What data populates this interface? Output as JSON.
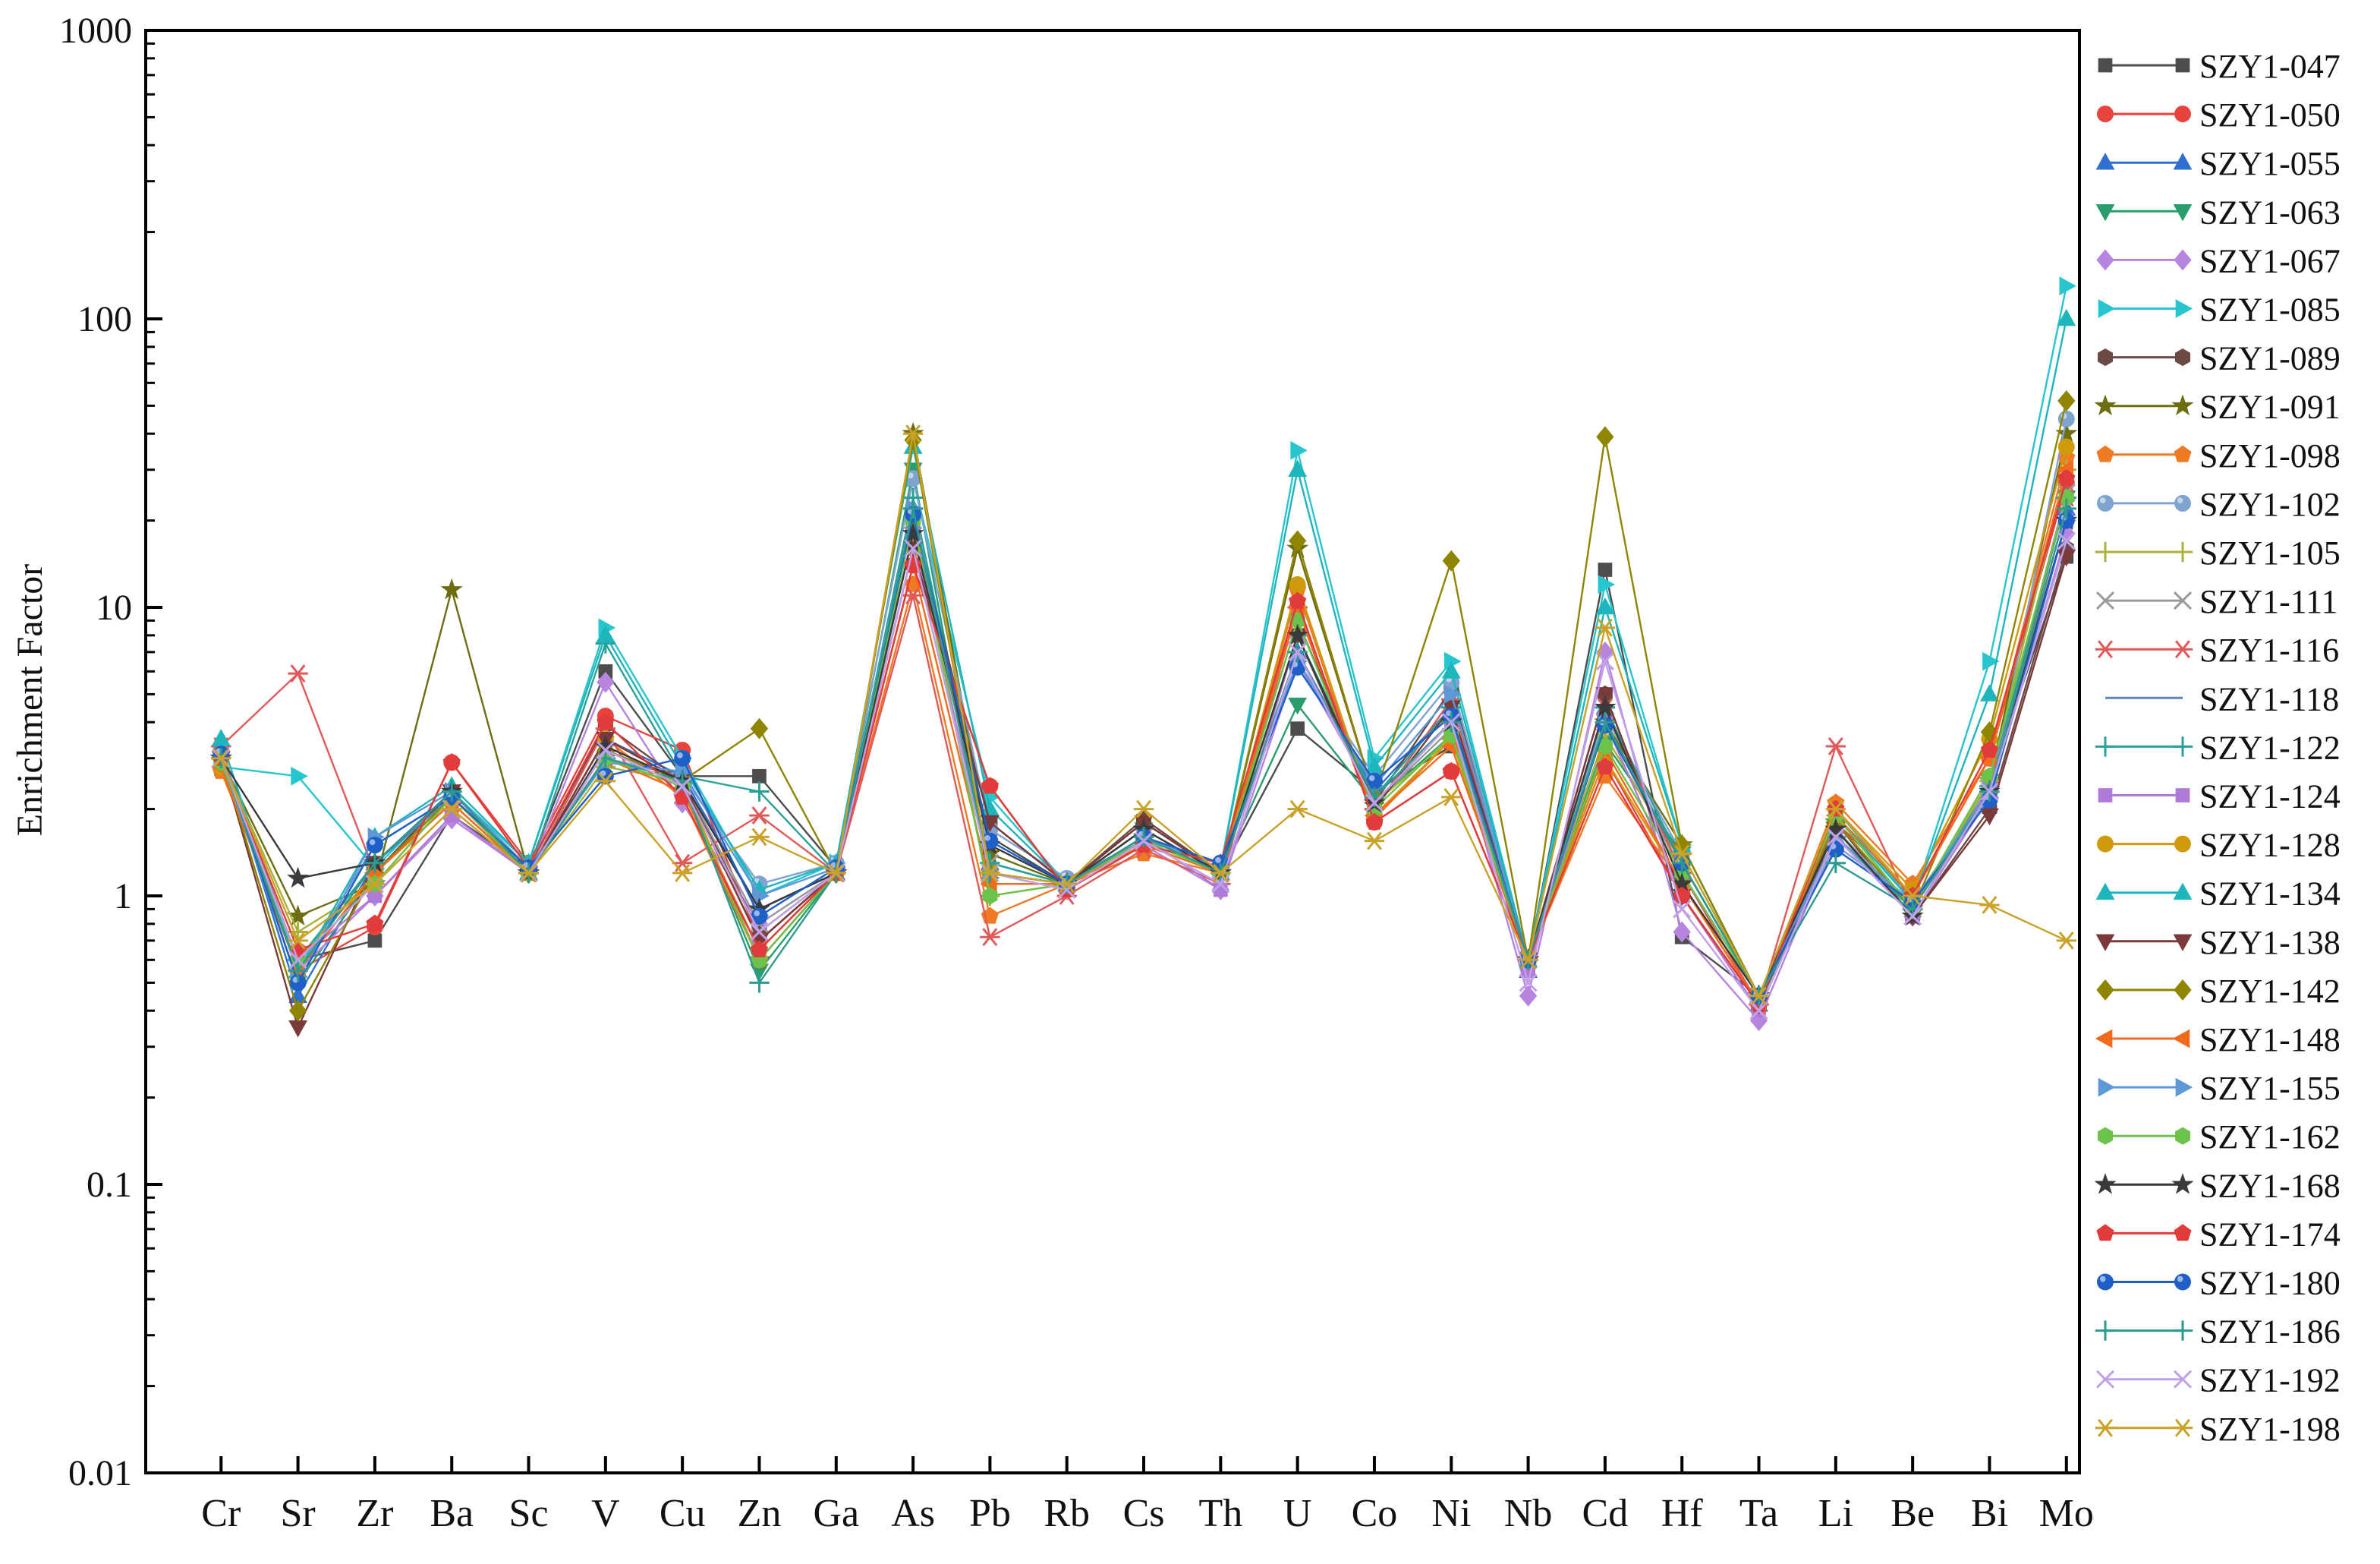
{
  "chart_data": {
    "type": "line",
    "ylabel": "Enrichment Factor",
    "xlabel": "",
    "yscale": "log",
    "ylim": [
      0.01,
      1000
    ],
    "yticks": [
      0.01,
      0.1,
      1,
      10,
      100,
      1000
    ],
    "ytick_labels": [
      "0.01",
      "0.1",
      "1",
      "10",
      "100",
      "1000"
    ],
    "grid": false,
    "legend_position": "right",
    "categories": [
      "Cr",
      "Sr",
      "Zr",
      "Ba",
      "Sc",
      "V",
      "Cu",
      "Zn",
      "Ga",
      "As",
      "Pb",
      "Rb",
      "Cs",
      "Th",
      "U",
      "Co",
      "Ni",
      "Nb",
      "Cd",
      "Hf",
      "Ta",
      "Li",
      "Be",
      "Bi",
      "Mo"
    ],
    "series": [
      {
        "name": "SZY1-047",
        "color": "#4d4d4d",
        "marker": "square",
        "values": [
          3.1,
          0.6,
          0.7,
          1.9,
          1.25,
          6.0,
          2.6,
          2.6,
          1.25,
          18,
          1.6,
          1.1,
          1.8,
          1.2,
          3.8,
          2.3,
          3.3,
          0.6,
          13.5,
          0.72,
          0.45,
          1.7,
          0.9,
          2.5,
          15
        ]
      },
      {
        "name": "SZY1-050",
        "color": "#e8443e",
        "marker": "circle",
        "values": [
          3.0,
          0.55,
          0.78,
          2.9,
          1.3,
          4.2,
          3.2,
          0.7,
          1.2,
          14,
          2.4,
          1.05,
          1.5,
          1.3,
          10,
          1.8,
          2.7,
          0.6,
          3.0,
          1.0,
          0.42,
          1.8,
          1.0,
          3.0,
          27
        ]
      },
      {
        "name": "SZY1-055",
        "color": "#2f6fd0",
        "marker": "triangle-up",
        "values": [
          3.2,
          0.45,
          1.3,
          2.2,
          1.2,
          3.5,
          2.6,
          0.9,
          1.2,
          22,
          1.3,
          1.1,
          1.6,
          1.2,
          7,
          2.3,
          4.5,
          0.55,
          4.5,
          1.2,
          0.42,
          1.6,
          0.95,
          2.3,
          22
        ]
      },
      {
        "name": "SZY1-063",
        "color": "#2a9d6c",
        "marker": "triangle-down",
        "values": [
          3.0,
          0.5,
          1.2,
          2.3,
          1.25,
          3.0,
          2.4,
          0.55,
          1.2,
          30,
          1.1,
          1.1,
          1.7,
          1.2,
          4.6,
          2.1,
          3.6,
          0.6,
          3.4,
          1.4,
          0.45,
          1.9,
          0.9,
          2.5,
          24
        ]
      },
      {
        "name": "SZY1-067",
        "color": "#b784e0",
        "marker": "diamond",
        "values": [
          3.0,
          0.55,
          1.0,
          1.85,
          1.2,
          5.5,
          2.1,
          0.8,
          1.2,
          16,
          1.2,
          1.05,
          1.5,
          1.05,
          6.5,
          2.2,
          4.0,
          0.45,
          7.0,
          0.75,
          0.37,
          1.6,
          0.85,
          2.2,
          18
        ]
      },
      {
        "name": "SZY1-085",
        "color": "#27c6cf",
        "marker": "triangle-right",
        "values": [
          2.8,
          2.6,
          1.25,
          2.3,
          1.3,
          8.5,
          3.0,
          1.0,
          1.3,
          28,
          2.2,
          1.1,
          1.6,
          1.25,
          35,
          3.0,
          6.5,
          0.6,
          12,
          1.5,
          0.45,
          2.0,
          0.95,
          6.5,
          130
        ]
      },
      {
        "name": "SZY1-089",
        "color": "#6b4a46",
        "marker": "hexagon",
        "values": [
          3.1,
          0.55,
          1.2,
          2.3,
          1.25,
          3.9,
          2.5,
          0.75,
          1.2,
          20,
          1.8,
          1.1,
          1.85,
          1.2,
          9,
          2.1,
          5.2,
          0.6,
          5.0,
          1.0,
          0.42,
          1.8,
          0.85,
          2.0,
          16
        ]
      },
      {
        "name": "SZY1-091",
        "color": "#6d6d12",
        "marker": "star",
        "values": [
          3.0,
          0.85,
          1.1,
          11.5,
          1.2,
          3.0,
          2.4,
          0.6,
          1.2,
          40,
          1.4,
          1.1,
          1.6,
          1.2,
          16,
          2.2,
          4.0,
          0.6,
          4.0,
          1.5,
          0.45,
          1.8,
          0.9,
          2.5,
          40
        ]
      },
      {
        "name": "SZY1-098",
        "color": "#f07a23",
        "marker": "pentagon",
        "values": [
          2.7,
          0.6,
          1.2,
          2.1,
          1.2,
          3.5,
          2.2,
          0.6,
          1.2,
          12,
          0.85,
          1.1,
          1.4,
          1.2,
          11.5,
          1.85,
          3.5,
          0.6,
          2.6,
          1.1,
          0.42,
          2.1,
          1.1,
          3.0,
          33
        ]
      },
      {
        "name": "SZY1-102",
        "color": "#7fa3cf",
        "marker": "sphere",
        "values": [
          3.2,
          0.55,
          1.5,
          2.2,
          1.25,
          3.0,
          2.6,
          1.1,
          1.3,
          28,
          1.7,
          1.15,
          1.55,
          1.3,
          6.5,
          2.6,
          5.5,
          0.6,
          4.2,
          1.4,
          0.45,
          1.5,
          0.95,
          2.2,
          45
        ]
      },
      {
        "name": "SZY1-105",
        "color": "#a8b23a",
        "marker": "plus",
        "values": [
          3.0,
          0.75,
          1.1,
          2.2,
          1.2,
          2.8,
          2.5,
          0.7,
          1.2,
          22,
          1.0,
          1.1,
          1.6,
          1.2,
          8,
          2.1,
          3.5,
          0.6,
          3.6,
          1.3,
          0.45,
          1.8,
          0.9,
          2.5,
          30
        ]
      },
      {
        "name": "SZY1-111",
        "color": "#9a9a9a",
        "marker": "x",
        "values": [
          3.0,
          0.6,
          1.2,
          2.2,
          1.2,
          3.2,
          2.5,
          0.8,
          1.2,
          20,
          1.3,
          1.1,
          1.6,
          1.2,
          8,
          2.1,
          3.8,
          0.6,
          4.0,
          1.2,
          0.45,
          1.7,
          0.9,
          2.4,
          25
        ]
      },
      {
        "name": "SZY1-116",
        "color": "#e05a5a",
        "marker": "asterisk",
        "values": [
          3.3,
          5.9,
          1.2,
          2.1,
          1.2,
          3.8,
          1.3,
          1.9,
          1.2,
          11,
          0.72,
          1.0,
          1.45,
          1.1,
          10,
          2.0,
          4.8,
          0.6,
          4.5,
          1.2,
          0.42,
          3.3,
          0.9,
          2.3,
          24
        ]
      },
      {
        "name": "SZY1-118",
        "color": "#5b86b5",
        "marker": "none",
        "values": [
          3.1,
          0.6,
          1.3,
          2.2,
          1.2,
          3.2,
          2.5,
          0.9,
          1.2,
          20,
          1.3,
          1.1,
          1.6,
          1.2,
          7,
          2.2,
          4.0,
          0.6,
          4.0,
          1.3,
          0.45,
          1.6,
          0.9,
          2.4,
          24
        ]
      },
      {
        "name": "SZY1-122",
        "color": "#2aa198",
        "marker": "plus",
        "values": [
          3.0,
          0.6,
          1.3,
          2.3,
          1.2,
          7.5,
          2.6,
          2.3,
          1.2,
          24,
          1.3,
          1.1,
          1.6,
          1.2,
          8,
          2.2,
          4.5,
          0.6,
          4.5,
          1.3,
          0.45,
          1.6,
          0.9,
          2.4,
          24
        ]
      },
      {
        "name": "SZY1-124",
        "color": "#b07ad9",
        "marker": "square",
        "values": [
          3.0,
          0.6,
          1.0,
          1.9,
          1.2,
          3.2,
          2.5,
          0.7,
          1.2,
          18,
          1.2,
          1.1,
          1.6,
          1.05,
          8,
          2.1,
          4.0,
          0.55,
          4.0,
          1.0,
          0.4,
          1.6,
          0.85,
          2.4,
          20
        ]
      },
      {
        "name": "SZY1-128",
        "color": "#d09a0c",
        "marker": "circle",
        "values": [
          2.8,
          0.6,
          1.2,
          2.2,
          1.2,
          3.5,
          2.5,
          0.6,
          1.2,
          16,
          1.2,
          1.1,
          1.55,
          1.2,
          12,
          1.9,
          3.5,
          0.6,
          3.0,
          1.1,
          0.45,
          2.0,
          1.05,
          3.5,
          36
        ]
      },
      {
        "name": "SZY1-134",
        "color": "#1fb5bd",
        "marker": "triangle-up",
        "values": [
          3.5,
          0.55,
          1.6,
          2.4,
          1.3,
          8.0,
          2.8,
          1.05,
          1.3,
          36,
          2.0,
          1.1,
          1.6,
          1.25,
          30,
          2.8,
          6.0,
          0.6,
          10,
          1.5,
          0.45,
          1.9,
          0.95,
          5.0,
          100
        ]
      },
      {
        "name": "SZY1-138",
        "color": "#7a3a3a",
        "marker": "triangle-down",
        "values": [
          3.0,
          0.35,
          1.3,
          2.3,
          1.2,
          3.5,
          2.5,
          0.7,
          1.2,
          16,
          1.8,
          1.1,
          1.8,
          1.2,
          8,
          2.0,
          4.5,
          0.6,
          5.0,
          1.0,
          0.42,
          1.7,
          0.85,
          1.9,
          15
        ]
      },
      {
        "name": "SZY1-142",
        "color": "#8f8500",
        "marker": "diamond",
        "values": [
          3.0,
          0.4,
          1.2,
          2.2,
          1.2,
          3.2,
          2.5,
          3.8,
          1.2,
          38,
          1.2,
          1.1,
          1.6,
          1.2,
          17,
          2.2,
          14.5,
          0.6,
          39,
          1.5,
          0.45,
          1.8,
          0.9,
          3.7,
          52
        ]
      },
      {
        "name": "SZY1-148",
        "color": "#f26b1d",
        "marker": "triangle-left",
        "values": [
          2.8,
          0.55,
          1.2,
          2.1,
          1.2,
          3.0,
          2.3,
          0.65,
          1.2,
          14,
          1.1,
          1.1,
          1.5,
          1.2,
          10,
          1.9,
          3.3,
          0.6,
          3.2,
          1.1,
          0.42,
          1.9,
          1.0,
          3.0,
          30
        ]
      },
      {
        "name": "SZY1-155",
        "color": "#5e98d6",
        "marker": "triangle-right",
        "values": [
          3.0,
          0.5,
          1.6,
          2.3,
          1.25,
          2.9,
          2.7,
          1.0,
          1.25,
          22,
          1.2,
          1.1,
          1.6,
          1.25,
          6.5,
          2.4,
          5.0,
          0.6,
          4.0,
          1.3,
          0.45,
          1.6,
          0.95,
          2.3,
          20
        ]
      },
      {
        "name": "SZY1-162",
        "color": "#6cc24a",
        "marker": "hexagon",
        "values": [
          2.9,
          0.6,
          1.1,
          2.2,
          1.2,
          3.0,
          2.4,
          0.6,
          1.2,
          20,
          1.0,
          1.1,
          1.55,
          1.2,
          9,
          2.0,
          3.6,
          0.6,
          3.3,
          1.2,
          0.45,
          1.9,
          0.9,
          2.6,
          24
        ]
      },
      {
        "name": "SZY1-168",
        "color": "#3a3a3a",
        "marker": "star",
        "values": [
          3.0,
          1.15,
          1.3,
          2.3,
          1.2,
          3.3,
          2.5,
          0.9,
          1.2,
          18,
          1.5,
          1.1,
          1.7,
          1.2,
          8,
          2.1,
          4.0,
          0.6,
          4.5,
          1.1,
          0.45,
          1.7,
          0.85,
          2.3,
          20
        ]
      },
      {
        "name": "SZY1-174",
        "color": "#e23b3b",
        "marker": "pentagon",
        "values": [
          3.0,
          0.65,
          0.8,
          2.9,
          1.25,
          4.0,
          2.2,
          0.65,
          1.2,
          14,
          2.4,
          1.05,
          1.5,
          1.3,
          10.5,
          1.8,
          2.7,
          0.6,
          2.8,
          1.0,
          0.42,
          2.0,
          1.0,
          3.2,
          28
        ]
      },
      {
        "name": "SZY1-180",
        "color": "#1f5fc8",
        "marker": "sphere",
        "values": [
          3.1,
          0.5,
          1.5,
          2.2,
          1.25,
          2.6,
          3.0,
          0.85,
          1.25,
          21,
          1.55,
          1.1,
          1.6,
          1.3,
          6.2,
          2.5,
          4.2,
          0.6,
          3.9,
          1.3,
          0.45,
          1.45,
          0.95,
          2.15,
          20
        ]
      },
      {
        "name": "SZY1-186",
        "color": "#2e9a8e",
        "marker": "plus",
        "values": [
          3.0,
          0.55,
          1.3,
          2.3,
          1.2,
          3.0,
          2.5,
          0.5,
          1.2,
          22,
          1.2,
          1.1,
          1.6,
          1.2,
          7,
          2.2,
          4.0,
          0.6,
          4.0,
          1.3,
          0.45,
          1.3,
          0.9,
          2.3,
          22
        ]
      },
      {
        "name": "SZY1-192",
        "color": "#c0a0e8",
        "marker": "x",
        "values": [
          3.0,
          0.6,
          1.1,
          2.0,
          1.2,
          3.2,
          2.4,
          0.75,
          1.2,
          16,
          1.2,
          1.05,
          1.55,
          1.1,
          7,
          2.1,
          4.0,
          0.5,
          6.5,
          0.9,
          0.4,
          1.6,
          0.85,
          2.3,
          17
        ]
      },
      {
        "name": "SZY1-198",
        "color": "#c9a227",
        "marker": "asterisk",
        "values": [
          3.0,
          0.7,
          1.1,
          2.0,
          1.2,
          2.5,
          1.2,
          1.6,
          1.2,
          40,
          1.2,
          1.1,
          2.0,
          1.2,
          2.0,
          1.55,
          2.2,
          0.6,
          8.5,
          1.4,
          0.45,
          2.0,
          1.0,
          0.93,
          0.7
        ]
      }
    ]
  }
}
